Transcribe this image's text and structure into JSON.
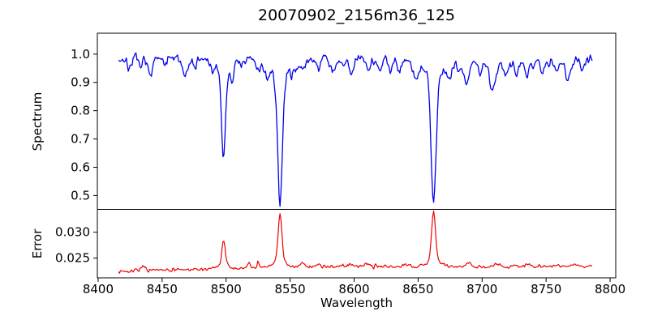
{
  "figure": {
    "title": "20070902_2156m36_125",
    "xlabel": "Wavelength",
    "background": "#ffffff",
    "spine_color": "#000000"
  },
  "chart_data": [
    {
      "type": "line",
      "panel": "spectrum",
      "ylabel": "Spectrum",
      "color": "#0000ee",
      "line_width": 1.3,
      "x_range": [
        8416,
        8786
      ],
      "xlim": [
        8399.4,
        8804.4
      ],
      "ylim": [
        0.451,
        1.074
      ],
      "yticks": {
        "values": [
          0.5,
          0.6,
          0.7,
          0.8,
          0.9,
          1.0
        ],
        "labels": [
          "0.5",
          "0.6",
          "0.7",
          "0.8",
          "0.9",
          "1.0"
        ]
      },
      "continuum": 0.982,
      "noise_sigma": 0.011,
      "strong_lines": [
        {
          "name": "line-8498",
          "center": 8498.0,
          "depth": 0.3,
          "sigma": 1.5,
          "wing_depth": 0.048,
          "wing_sigma": 6,
          "minimum": 0.63
        },
        {
          "name": "line-8542",
          "center": 8542.1,
          "depth": 0.448,
          "sigma": 1.9,
          "wing_depth": 0.055,
          "wing_sigma": 8,
          "minimum": 0.48
        },
        {
          "name": "line-8662",
          "center": 8662.1,
          "depth": 0.448,
          "sigma": 1.9,
          "wing_depth": 0.055,
          "wing_sigma": 8,
          "minimum": 0.48
        }
      ],
      "weak_lines": [
        [
          8424,
          0.03,
          1.5
        ],
        [
          8433,
          0.028,
          1.5
        ],
        [
          8440,
          0.052,
          1.8
        ],
        [
          8452,
          0.024,
          1.5
        ],
        [
          8468,
          0.058,
          1.8
        ],
        [
          8476,
          0.028,
          1.5
        ],
        [
          8490,
          0.03,
          1.4
        ],
        [
          8505,
          0.042,
          1.6
        ],
        [
          8514,
          0.028,
          1.5
        ],
        [
          8525,
          0.03,
          1.5
        ],
        [
          8532,
          0.048,
          1.8
        ],
        [
          8552,
          0.032,
          1.5
        ],
        [
          8560,
          0.042,
          1.8
        ],
        [
          8572,
          0.028,
          1.5
        ],
        [
          8583,
          0.05,
          1.8
        ],
        [
          8591,
          0.028,
          1.4
        ],
        [
          8598,
          0.05,
          1.8
        ],
        [
          8611,
          0.032,
          1.5
        ],
        [
          8620,
          0.042,
          1.8
        ],
        [
          8628,
          0.028,
          1.4
        ],
        [
          8635,
          0.032,
          1.5
        ],
        [
          8648,
          0.052,
          2.0
        ],
        [
          8674,
          0.038,
          1.8
        ],
        [
          8682,
          0.03,
          1.5
        ],
        [
          8688,
          0.075,
          2.0
        ],
        [
          8698,
          0.038,
          1.5
        ],
        [
          8708,
          0.105,
          2.2
        ],
        [
          8718,
          0.038,
          1.5
        ],
        [
          8727,
          0.028,
          1.5
        ],
        [
          8735,
          0.052,
          1.8
        ],
        [
          8747,
          0.028,
          1.5
        ],
        [
          8758,
          0.032,
          1.5
        ],
        [
          8767,
          0.058,
          1.8
        ],
        [
          8778,
          0.028,
          1.5
        ],
        [
          8720,
          0.012,
          40
        ]
      ]
    },
    {
      "type": "line",
      "panel": "error",
      "ylabel": "Error",
      "color": "#ee0000",
      "line_width": 1.2,
      "x_range": [
        8416,
        8786
      ],
      "xlim": [
        8399.4,
        8804.4
      ],
      "ylim": [
        0.0212,
        0.0344
      ],
      "yticks": {
        "values": [
          0.025,
          0.03
        ],
        "labels": [
          "0.025",
          "0.030"
        ]
      },
      "baseline": {
        "level": 0.0226,
        "rise": 0.0008,
        "rise_start": 8430,
        "rise_span": 150
      },
      "noise_sigma": 0.0002,
      "strong_peaks": [
        {
          "name": "peak-8498",
          "center": 8498.0,
          "amp": 0.0045,
          "sigma": 1.3,
          "wing_amp": 0.0009,
          "wing_sigma": 4,
          "maximum": 0.0284
        },
        {
          "name": "peak-8542",
          "center": 8542.1,
          "amp": 0.0088,
          "sigma": 1.5,
          "wing_amp": 0.0012,
          "wing_sigma": 5,
          "maximum": 0.0334
        },
        {
          "name": "peak-8662",
          "center": 8662.1,
          "amp": 0.0094,
          "sigma": 1.5,
          "wing_amp": 0.0012,
          "wing_sigma": 5,
          "maximum": 0.034
        }
      ],
      "weak_peaks": [
        [
          8435,
          0.0009,
          1.5
        ],
        [
          8518,
          0.0012,
          1.0
        ],
        [
          8525,
          0.0012,
          1.0
        ],
        [
          8560,
          0.0008,
          1.5
        ],
        [
          8572,
          0.0006,
          1.2
        ],
        [
          8598,
          0.0007,
          1.5
        ],
        [
          8610,
          0.0008,
          1.5
        ],
        [
          8640,
          0.0006,
          1.5
        ],
        [
          8690,
          0.0007,
          1.5
        ],
        [
          8712,
          0.0005,
          2.0
        ],
        [
          8735,
          0.0005,
          1.5
        ],
        [
          8770,
          0.0006,
          2.0
        ]
      ]
    }
  ],
  "x_axis": {
    "ticks": {
      "values": [
        8400,
        8450,
        8500,
        8550,
        8600,
        8650,
        8700,
        8750,
        8800
      ],
      "labels": [
        "8400",
        "8450",
        "8500",
        "8550",
        "8600",
        "8650",
        "8700",
        "8750",
        "8800"
      ]
    }
  }
}
